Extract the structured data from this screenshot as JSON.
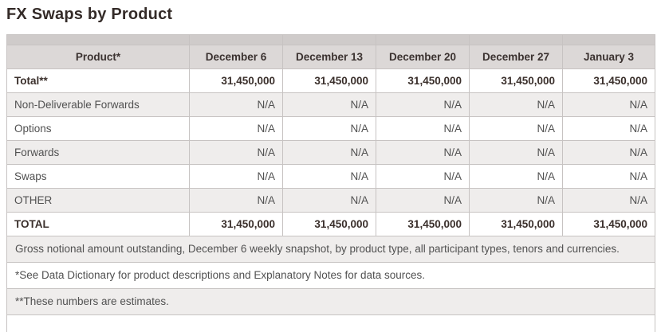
{
  "title": "FX Swaps by Product",
  "table": {
    "product_header": "Product*",
    "columns": [
      "December 6",
      "December 13",
      "December 20",
      "December 27",
      "January 3"
    ],
    "rows": [
      {
        "label": "Total**",
        "emphasis": true,
        "zebra": false,
        "values": [
          "31,450,000",
          "31,450,000",
          "31,450,000",
          "31,450,000",
          "31,450,000"
        ]
      },
      {
        "label": "Non-Deliverable Forwards",
        "emphasis": false,
        "zebra": true,
        "values": [
          "N/A",
          "N/A",
          "N/A",
          "N/A",
          "N/A"
        ]
      },
      {
        "label": "Options",
        "emphasis": false,
        "zebra": false,
        "values": [
          "N/A",
          "N/A",
          "N/A",
          "N/A",
          "N/A"
        ]
      },
      {
        "label": "Forwards",
        "emphasis": false,
        "zebra": true,
        "values": [
          "N/A",
          "N/A",
          "N/A",
          "N/A",
          "N/A"
        ]
      },
      {
        "label": "Swaps",
        "emphasis": false,
        "zebra": false,
        "values": [
          "N/A",
          "N/A",
          "N/A",
          "N/A",
          "N/A"
        ]
      },
      {
        "label": "OTHER",
        "emphasis": false,
        "zebra": true,
        "values": [
          "N/A",
          "N/A",
          "N/A",
          "N/A",
          "N/A"
        ]
      },
      {
        "label": "TOTAL",
        "emphasis": true,
        "zebra": false,
        "values": [
          "31,450,000",
          "31,450,000",
          "31,450,000",
          "31,450,000",
          "31,450,000"
        ]
      }
    ],
    "footnotes": [
      {
        "text": "Gross notional amount outstanding, December 6 weekly snapshot, by product type, all participant types, tenors and currencies.",
        "zebra": true
      },
      {
        "text": "*See Data Dictionary for product descriptions and Explanatory Notes for data sources.",
        "zebra": false
      },
      {
        "text": "**These numbers are estimates.",
        "zebra": true
      }
    ]
  },
  "colors": {
    "header_bg": "#dcd8d7",
    "strip_bg": "#cfcbca",
    "zebra_bg": "#efedec",
    "border": "#c7c3c2",
    "title_text": "#342b28",
    "emphasis_text": "#3a2f2b",
    "body_text": "#515151"
  }
}
